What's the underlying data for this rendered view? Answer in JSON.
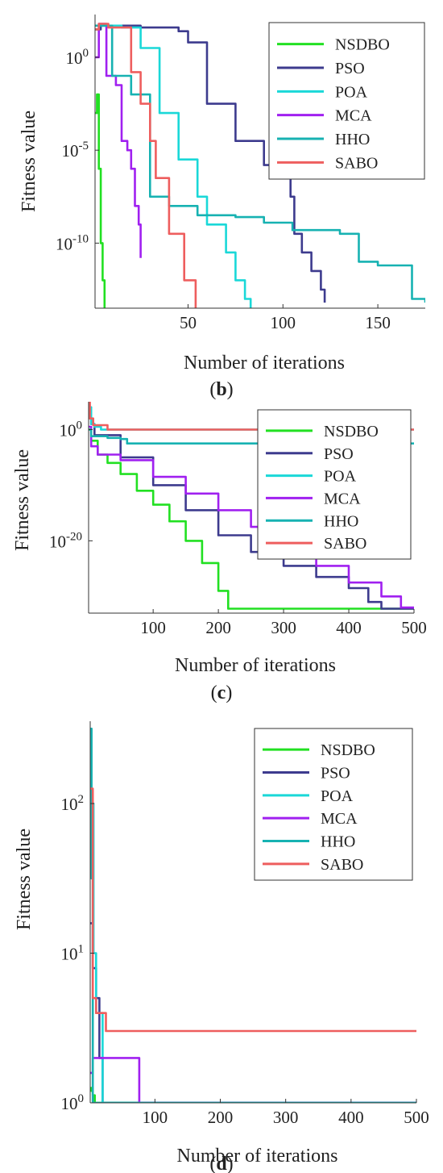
{
  "chart_data": [
    {
      "panel": "(b)",
      "type": "line",
      "xlabel": "Number of iterations",
      "ylabel": "Fitness value",
      "yscale": "log",
      "xlim": [
        1,
        175
      ],
      "ylim_log10": [
        -13.5,
        2.3
      ],
      "xticks": [
        50,
        100,
        150
      ],
      "yticks": [
        {
          "exp": 0,
          "label": "10",
          "sup": "0"
        },
        {
          "exp": -5,
          "label": "10",
          "sup": "-5"
        },
        {
          "exp": -10,
          "label": "10",
          "sup": "-10"
        }
      ],
      "legend_position": "top-right",
      "series": [
        {
          "name": "NSDBO",
          "color": "#22e022",
          "x": [
            1,
            2,
            3,
            4,
            5,
            6
          ],
          "log10_y": [
            -3,
            -2,
            -6,
            -10,
            -12,
            -13.5
          ]
        },
        {
          "name": "PSO",
          "color": "#3d3b8e",
          "x": [
            1,
            4,
            25,
            45,
            50,
            60,
            75,
            90,
            100,
            104,
            106,
            110,
            115,
            120,
            122
          ],
          "log10_y": [
            1.5,
            1.7,
            1.6,
            1.4,
            0.8,
            -2.5,
            -4.5,
            -5.8,
            -6.5,
            -7.5,
            -9.5,
            -10.5,
            -11.5,
            -12.5,
            -13.2
          ]
        },
        {
          "name": "POA",
          "color": "#1ad8d8",
          "x": [
            1,
            3,
            15,
            25,
            35,
            45,
            55,
            60,
            70,
            75,
            80,
            83
          ],
          "log10_y": [
            1.5,
            1.7,
            1.6,
            0.5,
            -3,
            -5.5,
            -7.5,
            -9,
            -10.5,
            -12,
            -13,
            -13.5
          ]
        },
        {
          "name": "MCA",
          "color": "#a020f0",
          "x": [
            1,
            3,
            7,
            12,
            15,
            18,
            20,
            22,
            24,
            25
          ],
          "log10_y": [
            0,
            1.8,
            -1,
            -1.5,
            -4.5,
            -5,
            -6,
            -8,
            -9,
            -10.8
          ]
        },
        {
          "name": "HHO",
          "color": "#17b2b2",
          "x": [
            1,
            4,
            10,
            20,
            28,
            30,
            40,
            55,
            75,
            90,
            105,
            130,
            140,
            150,
            168,
            175
          ],
          "log10_y": [
            1.7,
            1.7,
            -1,
            -2,
            -2,
            -7.5,
            -8,
            -8.5,
            -8.6,
            -8.9,
            -9.3,
            -9.5,
            -11,
            -11.2,
            -13,
            -13.2
          ]
        },
        {
          "name": "SABO",
          "color": "#ee5e5e",
          "x": [
            1,
            3,
            8,
            20,
            25,
            30,
            33,
            40,
            48,
            54
          ],
          "log10_y": [
            1.5,
            1.8,
            1.6,
            -0.8,
            -2.5,
            -4.5,
            -6.5,
            -9.5,
            -12,
            -13.5
          ]
        }
      ]
    },
    {
      "panel": "(c)",
      "type": "line",
      "xlabel": "Number of iterations",
      "ylabel": "Fitness value",
      "yscale": "log",
      "xlim": [
        1,
        500
      ],
      "ylim_log10": [
        -33,
        5
      ],
      "xticks": [
        100,
        200,
        300,
        400,
        500
      ],
      "yticks": [
        {
          "exp": 0,
          "label": "10",
          "sup": "0"
        },
        {
          "exp": -20,
          "label": "10",
          "sup": "-20"
        }
      ],
      "legend_position": "top-right",
      "series": [
        {
          "name": "NSDBO",
          "color": "#22e022",
          "x": [
            1,
            5,
            15,
            30,
            50,
            75,
            100,
            125,
            150,
            175,
            200,
            215,
            500
          ],
          "log10_y": [
            0,
            -2,
            -4.5,
            -6,
            -8,
            -11,
            -13.5,
            -16.5,
            -20,
            -24,
            -29,
            -32.2,
            -32.2
          ]
        },
        {
          "name": "PSO",
          "color": "#3d3b8e",
          "x": [
            1,
            5,
            10,
            50,
            100,
            150,
            200,
            250,
            300,
            350,
            400,
            430,
            450,
            500
          ],
          "log10_y": [
            4,
            1,
            -1,
            -5,
            -10,
            -14.5,
            -19,
            -22,
            -24.5,
            -26.5,
            -28.5,
            -31,
            -32.2,
            -32.2
          ]
        },
        {
          "name": "POA",
          "color": "#1ad8d8",
          "x": [
            1,
            5,
            10,
            20,
            500
          ],
          "log10_y": [
            4,
            1,
            0.5,
            0,
            0
          ]
        },
        {
          "name": "MCA",
          "color": "#a020f0",
          "x": [
            1,
            5,
            15,
            50,
            100,
            150,
            200,
            250,
            300,
            350,
            400,
            450,
            480,
            500
          ],
          "log10_y": [
            0.5,
            -3,
            -4.5,
            -5.5,
            -8.5,
            -11.5,
            -14.5,
            -17.5,
            -21,
            -24.5,
            -27.5,
            -30,
            -32,
            -32.2
          ]
        },
        {
          "name": "HHO",
          "color": "#17b2b2",
          "x": [
            1,
            5,
            30,
            50,
            60,
            500
          ],
          "log10_y": [
            0,
            -1.2,
            -1.5,
            -1.7,
            -2.5,
            -2.5
          ]
        },
        {
          "name": "SABO",
          "color": "#ee5e5e",
          "x": [
            1,
            3,
            8,
            30,
            100,
            500
          ],
          "log10_y": [
            5,
            2,
            0.8,
            0,
            0,
            0
          ]
        }
      ]
    },
    {
      "panel": "(d)",
      "type": "line",
      "xlabel": "Number of iterations",
      "ylabel": "Fitness value",
      "yscale": "log",
      "xlim": [
        1,
        500
      ],
      "ylim_log10": [
        0,
        2.55
      ],
      "xticks": [
        100,
        200,
        300,
        400,
        500
      ],
      "yticks": [
        {
          "exp": 2,
          "label": "10",
          "sup": "2"
        },
        {
          "exp": 1,
          "label": "10",
          "sup": "1"
        },
        {
          "exp": 0,
          "label": "10",
          "sup": "0"
        }
      ],
      "legend_position": "top-right",
      "series": [
        {
          "name": "NSDBO",
          "color": "#22e022",
          "x": [
            1,
            3,
            5,
            8,
            500
          ],
          "log10_y": [
            0.1,
            0.08,
            0.05,
            0,
            0
          ]
        },
        {
          "name": "PSO",
          "color": "#3d3b8e",
          "x": [
            1,
            5,
            10,
            15,
            20,
            500
          ],
          "log10_y": [
            1.2,
            0.9,
            0.7,
            0.3,
            0,
            0
          ]
        },
        {
          "name": "POA",
          "color": "#1ad8d8",
          "x": [
            1,
            3,
            6,
            10,
            20,
            500
          ],
          "log10_y": [
            2.5,
            2.0,
            1.0,
            0.6,
            0,
            0
          ]
        },
        {
          "name": "MCA",
          "color": "#a020f0",
          "x": [
            1,
            5,
            20,
            40,
            60,
            75,
            76,
            500
          ],
          "log10_y": [
            0.2,
            0.3,
            0.3,
            0.3,
            0.3,
            0.3,
            0,
            0
          ]
        },
        {
          "name": "HHO",
          "color": "#17b2b2",
          "x": [
            1,
            3,
            5,
            500
          ],
          "log10_y": [
            2.5,
            1.5,
            0,
            0
          ]
        },
        {
          "name": "SABO",
          "color": "#ee5e5e",
          "x": [
            1,
            5,
            10,
            20,
            25,
            30,
            500
          ],
          "log10_y": [
            2.1,
            0.7,
            0.6,
            0.6,
            0.48,
            0.48,
            0.48
          ]
        }
      ]
    }
  ]
}
